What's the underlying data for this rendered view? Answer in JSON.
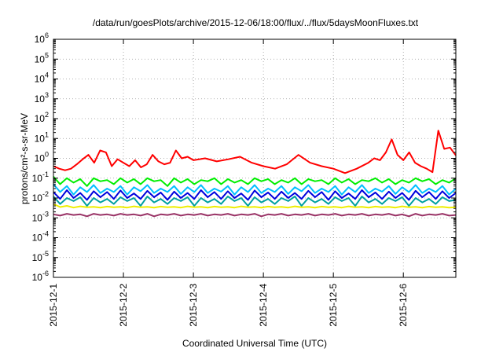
{
  "chart_data": {
    "type": "line",
    "title": "/data/run/goesPlots/archive/2015-12-06/18:00/flux/../flux/5daysMoonFluxes.txt",
    "xlabel": "Coordinated Universal Time (UTC)",
    "ylabel": "protons/cm²-s-sr-MeV",
    "yscale": "log",
    "ylim": [
      1e-06,
      1000000.0
    ],
    "xlim": [
      "2015-12-01T00:00",
      "2015-12-06T18:00"
    ],
    "x_ticks": [
      "2015-12-1",
      "2015-12-2",
      "2015-12-3",
      "2015-12-4",
      "2015-12-5",
      "2015-12-6"
    ],
    "y_ticks": [
      -6,
      -5,
      -4,
      -3,
      -2,
      -1,
      0,
      1,
      2,
      3,
      4,
      5,
      6
    ],
    "grid": true,
    "series": [
      {
        "color": "#ff0000",
        "x": [
          "2015-12-01T00:00",
          "2015-12-01T02:00",
          "2015-12-01T04:00",
          "2015-12-01T06:00",
          "2015-12-01T08:00",
          "2015-12-01T10:00",
          "2015-12-01T12:00",
          "2015-12-01T14:00",
          "2015-12-01T16:00",
          "2015-12-01T18:00",
          "2015-12-01T20:00",
          "2015-12-01T22:00",
          "2015-12-02T00:00",
          "2015-12-02T02:00",
          "2015-12-02T04:00",
          "2015-12-02T06:00",
          "2015-12-02T08:00",
          "2015-12-02T10:00",
          "2015-12-02T12:00",
          "2015-12-02T14:00",
          "2015-12-02T16:00",
          "2015-12-02T18:00",
          "2015-12-02T20:00",
          "2015-12-02T22:00",
          "2015-12-03T00:00",
          "2015-12-03T04:00",
          "2015-12-03T08:00",
          "2015-12-03T12:00",
          "2015-12-03T16:00",
          "2015-12-03T20:00",
          "2015-12-04T00:00",
          "2015-12-04T04:00",
          "2015-12-04T08:00",
          "2015-12-04T12:00",
          "2015-12-04T16:00",
          "2015-12-04T20:00",
          "2015-12-05T00:00",
          "2015-12-05T04:00",
          "2015-12-05T08:00",
          "2015-12-05T12:00",
          "2015-12-05T14:00",
          "2015-12-05T16:00",
          "2015-12-05T18:00",
          "2015-12-05T20:00",
          "2015-12-05T22:00",
          "2015-12-06T00:00",
          "2015-12-06T02:00",
          "2015-12-06T04:00",
          "2015-12-06T06:00",
          "2015-12-06T08:00",
          "2015-12-06T10:00",
          "2015-12-06T12:00",
          "2015-12-06T14:00",
          "2015-12-06T16:00",
          "2015-12-06T18:00"
        ],
        "values": [
          0.4,
          0.3,
          0.25,
          0.3,
          0.5,
          0.9,
          1.5,
          0.6,
          2.5,
          2.0,
          0.4,
          0.9,
          0.6,
          0.4,
          0.8,
          0.35,
          0.5,
          1.5,
          0.7,
          0.5,
          0.6,
          2.5,
          1.0,
          1.2,
          0.8,
          1.0,
          0.7,
          0.9,
          1.2,
          0.6,
          0.4,
          0.3,
          0.5,
          1.5,
          0.6,
          0.4,
          0.3,
          0.18,
          0.3,
          0.6,
          1.0,
          0.8,
          2.0,
          9.0,
          1.5,
          0.8,
          2.0,
          0.6,
          0.4,
          0.3,
          0.2,
          25.0,
          3.0,
          3.5,
          1.4
        ]
      },
      {
        "color": "#00ee00",
        "x_start": "2015-12-01T00:00",
        "x_end": "2015-12-06T18:00",
        "values": [
          0.12,
          0.05,
          0.1,
          0.06,
          0.09,
          0.04,
          0.1,
          0.07,
          0.08,
          0.05,
          0.1,
          0.06,
          0.09,
          0.05,
          0.1,
          0.07,
          0.08,
          0.04,
          0.1,
          0.06,
          0.09,
          0.05,
          0.08,
          0.07,
          0.1,
          0.05,
          0.09,
          0.06,
          0.08,
          0.05,
          0.1,
          0.07,
          0.09,
          0.05,
          0.08,
          0.06,
          0.1,
          0.05,
          0.09,
          0.07,
          0.08,
          0.05,
          0.1,
          0.06,
          0.09,
          0.05,
          0.08,
          0.07,
          0.1,
          0.06,
          0.09,
          0.05,
          0.08,
          0.06,
          0.1,
          0.07,
          0.09,
          0.05,
          0.08,
          0.06,
          0.1
        ]
      },
      {
        "color": "#00bfff",
        "x_start": "2015-12-01T00:00",
        "x_end": "2015-12-06T18:00",
        "values": [
          0.05,
          0.02,
          0.04,
          0.015,
          0.035,
          0.02,
          0.045,
          0.018,
          0.03,
          0.02,
          0.04,
          0.015,
          0.035,
          0.022,
          0.045,
          0.018,
          0.03,
          0.02,
          0.04,
          0.016,
          0.035,
          0.02,
          0.045,
          0.018,
          0.03,
          0.021,
          0.04,
          0.015,
          0.035,
          0.02,
          0.045,
          0.018,
          0.03,
          0.02,
          0.04,
          0.016,
          0.035,
          0.022,
          0.045,
          0.018,
          0.03,
          0.02,
          0.04,
          0.015,
          0.035,
          0.02,
          0.045,
          0.018,
          0.03,
          0.021,
          0.04,
          0.016,
          0.035,
          0.02,
          0.045,
          0.018,
          0.03,
          0.02,
          0.04,
          0.015,
          0.03
        ]
      },
      {
        "color": "#0000dd",
        "x_start": "2015-12-01T00:00",
        "x_end": "2015-12-06T18:00",
        "values": [
          0.02,
          0.009,
          0.025,
          0.01,
          0.018,
          0.008,
          0.022,
          0.011,
          0.02,
          0.009,
          0.024,
          0.01,
          0.017,
          0.009,
          0.023,
          0.011,
          0.019,
          0.008,
          0.021,
          0.01,
          0.018,
          0.009,
          0.025,
          0.011,
          0.02,
          0.009,
          0.022,
          0.01,
          0.017,
          0.008,
          0.024,
          0.011,
          0.019,
          0.009,
          0.021,
          0.01,
          0.018,
          0.009,
          0.023,
          0.011,
          0.02,
          0.008,
          0.022,
          0.01,
          0.017,
          0.009,
          0.025,
          0.011,
          0.019,
          0.009,
          0.021,
          0.01,
          0.018,
          0.008,
          0.023,
          0.011,
          0.02,
          0.009,
          0.022,
          0.01,
          0.018
        ]
      },
      {
        "color": "#00a0a0",
        "x_start": "2015-12-01T00:00",
        "x_end": "2015-12-06T18:00",
        "values": [
          0.012,
          0.005,
          0.01,
          0.007,
          0.011,
          0.004,
          0.01,
          0.006,
          0.009,
          0.005,
          0.011,
          0.007,
          0.01,
          0.004,
          0.012,
          0.006,
          0.009,
          0.005,
          0.01,
          0.007,
          0.011,
          0.004,
          0.01,
          0.006,
          0.009,
          0.005,
          0.012,
          0.007,
          0.01,
          0.004,
          0.011,
          0.006,
          0.009,
          0.005,
          0.01,
          0.007,
          0.012,
          0.004,
          0.01,
          0.006,
          0.009,
          0.005,
          0.011,
          0.007,
          0.01,
          0.004,
          0.012,
          0.006,
          0.009,
          0.005,
          0.01,
          0.007,
          0.011,
          0.004,
          0.01,
          0.006,
          0.009,
          0.005,
          0.011,
          0.007,
          0.008
        ]
      },
      {
        "color": "#eeee00",
        "x_start": "2015-12-01T00:00",
        "x_end": "2015-12-06T18:00",
        "values": [
          0.005,
          0.0035,
          0.004,
          0.0033,
          0.0038,
          0.0034,
          0.0036,
          0.0033,
          0.0037,
          0.0034,
          0.0036,
          0.0033,
          0.0038,
          0.0034,
          0.0036,
          0.0033,
          0.0037,
          0.0034,
          0.0036,
          0.0033,
          0.0038,
          0.0034,
          0.0036,
          0.0033,
          0.0037,
          0.0034,
          0.0036,
          0.0033,
          0.0038,
          0.0034,
          0.0036,
          0.0033,
          0.0037,
          0.0034,
          0.0036,
          0.0033,
          0.0038,
          0.0034,
          0.0036,
          0.0033,
          0.0037,
          0.0034,
          0.0036,
          0.0033,
          0.0038,
          0.0034,
          0.0036,
          0.0033,
          0.0037,
          0.0034,
          0.0036,
          0.0033,
          0.0038,
          0.0034,
          0.0036,
          0.0033,
          0.0037,
          0.0034,
          0.0036,
          0.0033,
          0.0034
        ]
      },
      {
        "color": "#993366",
        "x_start": "2015-12-01T00:00",
        "x_end": "2015-12-06T18:00",
        "values": [
          0.0015,
          0.0013,
          0.0016,
          0.0014,
          0.0015,
          0.0012,
          0.0016,
          0.0014,
          0.0015,
          0.0013,
          0.0016,
          0.0014,
          0.0015,
          0.0013,
          0.0016,
          0.0012,
          0.0015,
          0.0014,
          0.0016,
          0.0013,
          0.0015,
          0.0014,
          0.0016,
          0.0013,
          0.0015,
          0.0014,
          0.0016,
          0.0013,
          0.0015,
          0.0014,
          0.0016,
          0.0012,
          0.0015,
          0.0014,
          0.0016,
          0.0013,
          0.0015,
          0.0014,
          0.0016,
          0.0013,
          0.0015,
          0.0014,
          0.0016,
          0.0013,
          0.0015,
          0.0014,
          0.0016,
          0.0013,
          0.0015,
          0.0014,
          0.0016,
          0.0013,
          0.0015,
          0.0012,
          0.0016,
          0.0013,
          0.0015,
          0.0014,
          0.0016,
          0.0013,
          0.0014
        ]
      }
    ]
  }
}
